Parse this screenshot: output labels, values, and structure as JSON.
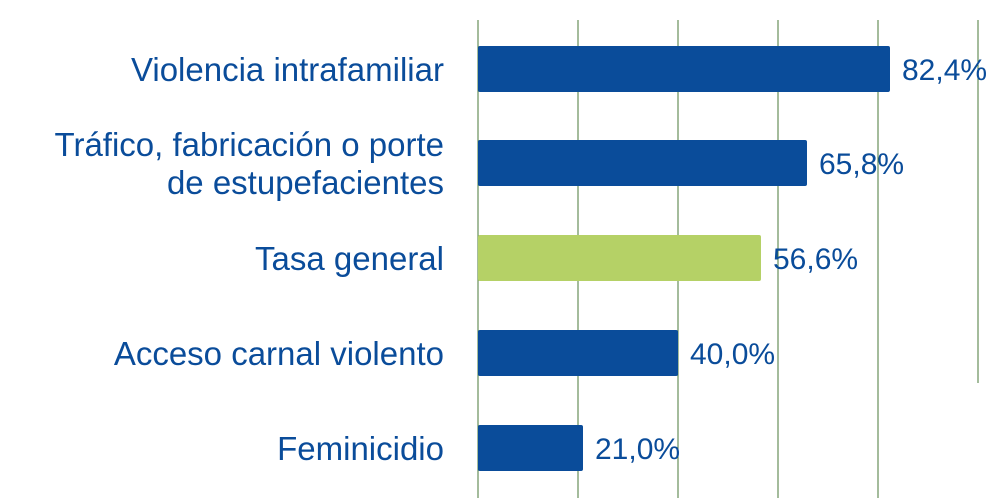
{
  "chart_data": {
    "type": "bar",
    "orientation": "horizontal",
    "categories": [
      [
        "Violencia intrafamiliar"
      ],
      [
        "Tráfico, fabricación o porte",
        "de estupefacientes"
      ],
      [
        "Tasa general"
      ],
      [
        "Acceso carnal violento"
      ],
      [
        "Feminicidio"
      ]
    ],
    "values": [
      82.4,
      65.8,
      56.6,
      40.0,
      21.0
    ],
    "value_labels": [
      "82,4%",
      "65,8%",
      "56,6%",
      "40,0%",
      "21,0%"
    ],
    "bar_colors": [
      "#0a4c9a",
      "#0a4c9a",
      "#b5d166",
      "#0a4c9a",
      "#0a4c9a"
    ],
    "xlim": [
      0,
      100
    ],
    "grid": true,
    "title": "",
    "xlabel": "",
    "ylabel": ""
  }
}
